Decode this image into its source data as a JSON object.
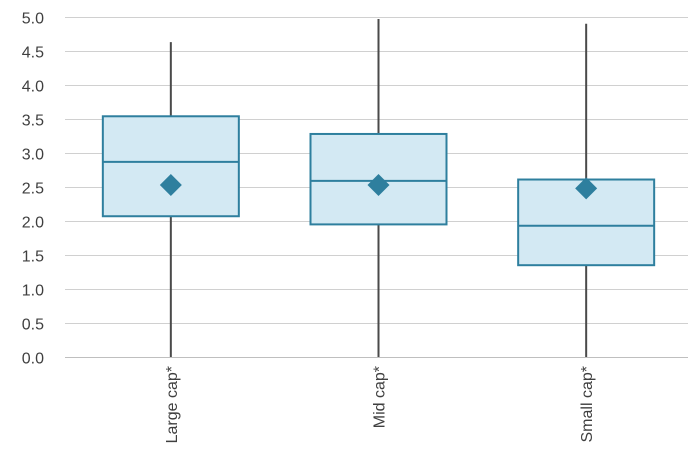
{
  "chart_data": {
    "type": "boxplot",
    "title": "",
    "xlabel": "",
    "ylabel": "",
    "ylim": [
      0,
      5
    ],
    "yticks": [
      "0.0",
      "0.5",
      "1.0",
      "1.5",
      "2.0",
      "2.5",
      "3.0",
      "3.5",
      "4.0",
      "4.5",
      "5.0"
    ],
    "grid": true,
    "categories": [
      "Large cap*",
      "Mid cap*",
      "Small cap*"
    ],
    "series": [
      {
        "category": "Large cap*",
        "min": 0.0,
        "q1": 2.07,
        "median": 2.87,
        "q3": 3.54,
        "max": 4.63,
        "mean": 2.53
      },
      {
        "category": "Mid cap*",
        "min": 0.0,
        "q1": 1.95,
        "median": 2.59,
        "q3": 3.28,
        "max": 4.97,
        "mean": 2.53
      },
      {
        "category": "Small cap*",
        "min": 0.0,
        "q1": 1.35,
        "median": 1.93,
        "q3": 2.61,
        "max": 4.9,
        "mean": 2.48
      }
    ],
    "colors": {
      "box_fill": "#d3e9f3",
      "box_stroke": "#2e7f9e",
      "mean_marker": "#2e7f9e",
      "whisker": "#4a4a4a"
    }
  }
}
